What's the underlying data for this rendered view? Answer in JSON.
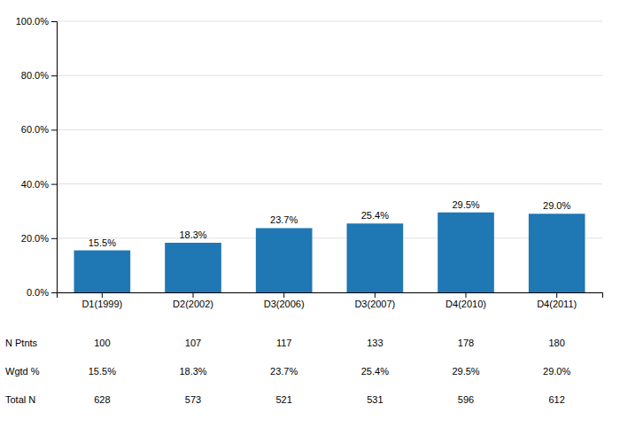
{
  "chart_data": {
    "type": "bar",
    "categories": [
      "D1(1999)",
      "D2(2002)",
      "D3(2006)",
      "D3(2007)",
      "D4(2010)",
      "D4(2011)"
    ],
    "values": [
      15.5,
      18.3,
      23.7,
      25.4,
      29.5,
      29.0
    ],
    "value_labels": [
      "15.5%",
      "18.3%",
      "23.7%",
      "25.4%",
      "29.5%",
      "29.0%"
    ],
    "data_labels": true,
    "ylim": [
      0,
      100
    ],
    "yticks": [
      {
        "value": 0,
        "label": "0.0%"
      },
      {
        "value": 20,
        "label": "20.0%"
      },
      {
        "value": 40,
        "label": "40.0%"
      },
      {
        "value": 60,
        "label": "60.0%"
      },
      {
        "value": 80,
        "label": "80.0%"
      },
      {
        "value": 100,
        "label": "100.0%"
      }
    ],
    "grid": true,
    "table": {
      "rows": [
        {
          "name": "N Ptnts",
          "values": [
            100,
            107,
            117,
            133,
            178,
            180
          ]
        },
        {
          "name": "Wgtd %",
          "values": [
            15.5,
            18.3,
            23.7,
            25.4,
            29.5,
            29.0
          ],
          "value_labels": [
            "15.5%",
            "18.3%",
            "23.7%",
            "25.4%",
            "29.5%",
            "29.0%"
          ]
        },
        {
          "name": "Total N",
          "values": [
            628,
            573,
            521,
            531,
            596,
            612
          ]
        }
      ]
    }
  }
}
